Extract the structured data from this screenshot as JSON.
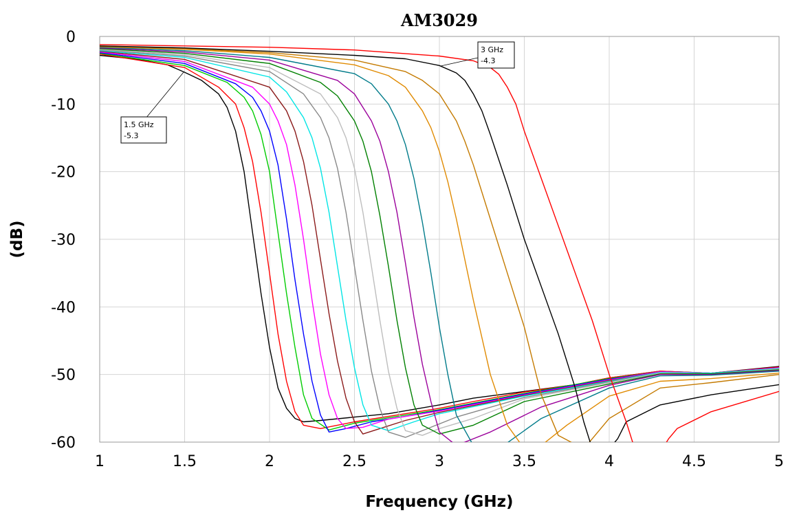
{
  "chart_data": {
    "type": "line",
    "title": "AM3029",
    "xlabel": "Frequency (GHz)",
    "ylabel": "(dB)",
    "xlim": [
      1,
      5
    ],
    "ylim": [
      -60,
      0
    ],
    "xticks": [
      "1",
      "1.5",
      "2",
      "2.5",
      "3",
      "3.5",
      "4",
      "4.5",
      "5"
    ],
    "yticks": [
      "0",
      "-10",
      "-20",
      "-30",
      "-40",
      "-50",
      "-60"
    ],
    "grid": true,
    "series": [
      {
        "color": "#000000",
        "x": [
          1,
          1.2,
          1.4,
          1.5,
          1.6,
          1.7,
          1.75,
          1.8,
          1.85,
          1.9,
          1.95,
          2.0,
          2.05,
          2.1,
          2.15,
          2.2,
          2.3,
          2.5,
          2.7,
          3.0,
          3.2,
          3.5,
          3.8,
          4.0,
          4.3,
          4.6,
          5.0
        ],
        "y": [
          -2.8,
          -3.3,
          -4.2,
          -5.3,
          -6.5,
          -8.5,
          -10.5,
          -14,
          -20,
          -29,
          -38,
          -46,
          -52,
          -55,
          -56.5,
          -57,
          -56.8,
          -56.3,
          -55.8,
          -54.5,
          -53.5,
          -52.5,
          -51.5,
          -50.5,
          -49.5,
          -49.8,
          -48.8
        ]
      },
      {
        "color": "#ff0000",
        "x": [
          1,
          1.5,
          1.7,
          1.8,
          1.85,
          1.9,
          1.95,
          2.0,
          2.05,
          2.1,
          2.15,
          2.2,
          2.3,
          2.5,
          2.7,
          3.0,
          3.2,
          3.5,
          3.8,
          4.0,
          4.3,
          4.6,
          5.0
        ],
        "y": [
          -2.6,
          -4.6,
          -7.5,
          -10,
          -13.5,
          -18.5,
          -26,
          -35,
          -44,
          -51,
          -55.5,
          -57.5,
          -58,
          -57,
          -56.2,
          -55,
          -54,
          -52.6,
          -51.5,
          -50.5,
          -49.5,
          -49.8,
          -48.9
        ]
      },
      {
        "color": "#00cc00",
        "x": [
          1,
          1.5,
          1.75,
          1.85,
          1.9,
          1.95,
          2.0,
          2.05,
          2.1,
          2.15,
          2.2,
          2.25,
          2.35,
          2.5,
          2.7,
          3.0,
          3.5,
          4.0,
          4.3,
          4.6,
          5.0
        ],
        "y": [
          -2.5,
          -4.3,
          -6.8,
          -9,
          -11,
          -14.5,
          -20,
          -29,
          -38,
          -46,
          -53,
          -56.5,
          -58.2,
          -57.2,
          -56.4,
          -55.2,
          -52.8,
          -50.6,
          -49.6,
          -49.8,
          -49
        ]
      },
      {
        "color": "#0000ff",
        "x": [
          1,
          1.5,
          1.8,
          1.9,
          1.95,
          2.0,
          2.05,
          2.1,
          2.15,
          2.2,
          2.25,
          2.3,
          2.35,
          2.45,
          2.6,
          2.8,
          3.0,
          3.5,
          4.0,
          4.3,
          4.6,
          5.0
        ],
        "y": [
          -2.4,
          -4.0,
          -7,
          -9,
          -11,
          -14,
          -19,
          -27,
          -36,
          -44,
          -51,
          -56,
          -58.5,
          -58,
          -57,
          -56.2,
          -55.3,
          -52.9,
          -50.7,
          -49.6,
          -49.8,
          -49
        ]
      },
      {
        "color": "#ff00ff",
        "x": [
          1,
          1.5,
          1.9,
          2.0,
          2.05,
          2.1,
          2.15,
          2.2,
          2.25,
          2.3,
          2.35,
          2.4,
          2.45,
          2.55,
          2.7,
          3.0,
          3.5,
          4.0,
          4.3,
          4.6,
          5.0
        ],
        "y": [
          -2.3,
          -3.7,
          -7.5,
          -10,
          -12.5,
          -16,
          -22,
          -30,
          -39,
          -47,
          -53,
          -56.5,
          -58,
          -57.8,
          -56.6,
          -55.4,
          -53,
          -50.8,
          -49.6,
          -49.8,
          -49
        ]
      },
      {
        "color": "#8b1a1a",
        "x": [
          1,
          1.5,
          2.0,
          2.1,
          2.15,
          2.2,
          2.25,
          2.3,
          2.35,
          2.4,
          2.45,
          2.5,
          2.55,
          2.65,
          2.8,
          3.0,
          3.5,
          4.0,
          4.3,
          4.6,
          5.0
        ],
        "y": [
          -2.2,
          -3.4,
          -7.5,
          -11,
          -14,
          -18.5,
          -25,
          -33,
          -41,
          -48,
          -53.5,
          -57,
          -58.8,
          -58,
          -56.8,
          -55.6,
          -53.1,
          -50.9,
          -49.7,
          -49.8,
          -49.1
        ]
      },
      {
        "color": "#00e5e5",
        "x": [
          1,
          1.5,
          2.0,
          2.1,
          2.2,
          2.25,
          2.3,
          2.35,
          2.4,
          2.45,
          2.5,
          2.55,
          2.6,
          2.7,
          2.85,
          3.0,
          3.5,
          4.0,
          4.3,
          4.6,
          5.0
        ],
        "y": [
          -2.1,
          -3.1,
          -6,
          -8.2,
          -12,
          -15,
          -19.5,
          -26,
          -34,
          -42,
          -49,
          -54.5,
          -57.5,
          -58.3,
          -57,
          -55.8,
          -53.2,
          -51,
          -49.7,
          -49.8,
          -49.1
        ]
      },
      {
        "color": "#888888",
        "x": [
          1,
          1.5,
          2.0,
          2.2,
          2.3,
          2.35,
          2.4,
          2.45,
          2.5,
          2.55,
          2.6,
          2.65,
          2.7,
          2.8,
          2.95,
          3.1,
          3.5,
          4.0,
          4.3,
          4.6,
          5.0
        ],
        "y": [
          -2.0,
          -2.9,
          -5.2,
          -8.5,
          -12,
          -15,
          -19.5,
          -26,
          -34,
          -42,
          -49.5,
          -55,
          -58.5,
          -59.3,
          -57.8,
          -56.3,
          -53.4,
          -51.1,
          -49.8,
          -49.9,
          -49.2
        ]
      },
      {
        "color": "#bdbdbd",
        "x": [
          1,
          1.5,
          2.0,
          2.3,
          2.4,
          2.45,
          2.5,
          2.55,
          2.6,
          2.65,
          2.7,
          2.75,
          2.8,
          2.9,
          3.0,
          3.2,
          3.5,
          4.0,
          4.3,
          4.6,
          5.0
        ],
        "y": [
          -1.9,
          -2.7,
          -4.6,
          -8.5,
          -12,
          -15,
          -19.5,
          -26,
          -34,
          -42,
          -49.5,
          -55,
          -58.3,
          -59,
          -58,
          -56.5,
          -53.6,
          -51.2,
          -49.8,
          -49.9,
          -49.2
        ]
      },
      {
        "color": "#008000",
        "x": [
          1,
          1.5,
          2.0,
          2.3,
          2.4,
          2.5,
          2.55,
          2.6,
          2.65,
          2.7,
          2.75,
          2.8,
          2.85,
          2.9,
          3.0,
          3.2,
          3.5,
          4.0,
          4.3,
          4.6,
          5.0
        ],
        "y": [
          -1.8,
          -2.5,
          -4.0,
          -6.8,
          -8.8,
          -12.5,
          -15.5,
          -20,
          -26.5,
          -34,
          -42,
          -49,
          -54.5,
          -57.5,
          -58.8,
          -57.5,
          -54,
          -51.4,
          -49.9,
          -49.9,
          -49.3
        ]
      },
      {
        "color": "#9b009b",
        "x": [
          1,
          1.5,
          2.0,
          2.4,
          2.5,
          2.6,
          2.65,
          2.7,
          2.75,
          2.8,
          2.85,
          2.9,
          2.95,
          3.0,
          3.1,
          3.3,
          3.6,
          4.0,
          4.3,
          4.6,
          5.0
        ],
        "y": [
          -1.7,
          -2.3,
          -3.5,
          -6.5,
          -8.5,
          -12.5,
          -15.5,
          -20,
          -26,
          -33.5,
          -41.5,
          -48.5,
          -54,
          -58.5,
          -60.5,
          -58.5,
          -54.8,
          -51.6,
          -50,
          -50,
          -49.4
        ]
      },
      {
        "color": "#007b8a",
        "x": [
          1,
          1.5,
          2.0,
          2.5,
          2.6,
          2.7,
          2.75,
          2.8,
          2.85,
          2.9,
          2.95,
          3.0,
          3.05,
          3.1,
          3.2,
          3.35,
          3.6,
          4.0,
          4.3,
          4.6,
          5.0
        ],
        "y": [
          -1.6,
          -2.1,
          -3.1,
          -5.5,
          -7,
          -10,
          -12.5,
          -16,
          -21,
          -27.5,
          -35,
          -43,
          -50,
          -56,
          -60.5,
          -61,
          -56.5,
          -52,
          -50.2,
          -50.1,
          -49.5
        ]
      },
      {
        "color": "#e08a00",
        "x": [
          1,
          1.5,
          2.0,
          2.5,
          2.7,
          2.8,
          2.9,
          2.95,
          3.0,
          3.05,
          3.1,
          3.15,
          3.2,
          3.3,
          3.4,
          3.5,
          3.6,
          3.75,
          4.0,
          4.3,
          4.6,
          5.0
        ],
        "y": [
          -1.5,
          -1.9,
          -2.6,
          -4.2,
          -5.8,
          -7.5,
          -11,
          -13.5,
          -17,
          -21.5,
          -27,
          -33,
          -39,
          -50,
          -57.5,
          -61,
          -60.5,
          -57.5,
          -53.2,
          -51,
          -50.6,
          -49.8
        ]
      },
      {
        "color": "#c47a00",
        "x": [
          1,
          1.5,
          2.0,
          2.5,
          2.8,
          2.9,
          3.0,
          3.1,
          3.15,
          3.2,
          3.3,
          3.4,
          3.5,
          3.55,
          3.6,
          3.7,
          3.85,
          4.0,
          4.3,
          4.6,
          5.0
        ],
        "y": [
          -1.4,
          -1.8,
          -2.4,
          -3.5,
          -5.2,
          -6.5,
          -8.5,
          -12.5,
          -15.5,
          -19,
          -27,
          -35,
          -43,
          -48,
          -53,
          -59,
          -61,
          -56.5,
          -52,
          -51.2,
          -50
        ]
      },
      {
        "color": "#000000",
        "x": [
          1,
          1.5,
          2.0,
          2.5,
          2.8,
          3.0,
          3.1,
          3.15,
          3.2,
          3.25,
          3.3,
          3.4,
          3.5,
          3.6,
          3.7,
          3.8,
          3.85,
          3.9,
          3.95,
          4.0,
          4.05,
          4.1,
          4.3,
          4.6,
          5.0
        ],
        "y": [
          -1.4,
          -1.7,
          -2.2,
          -2.8,
          -3.3,
          -4.3,
          -5.4,
          -6.5,
          -8.5,
          -11,
          -14.5,
          -22,
          -30,
          -37,
          -44,
          -52,
          -57,
          -61,
          -62,
          -61,
          -59.5,
          -57,
          -54.5,
          -53,
          -51.5
        ]
      },
      {
        "color": "#ff0000",
        "x": [
          1,
          1.5,
          2.0,
          2.5,
          3.0,
          3.2,
          3.3,
          3.35,
          3.4,
          3.45,
          3.5,
          3.6,
          3.7,
          3.8,
          3.9,
          4.0,
          4.1,
          4.15,
          4.2,
          4.3,
          4.35,
          4.4,
          4.6,
          5.0
        ],
        "y": [
          -1.2,
          -1.4,
          -1.6,
          -2.0,
          -2.9,
          -3.6,
          -4.6,
          -5.6,
          -7.5,
          -10,
          -14,
          -21,
          -28,
          -35,
          -42,
          -50,
          -57,
          -61,
          -62,
          -61.5,
          -59.5,
          -58,
          -55.5,
          -52.5
        ]
      }
    ],
    "annotations": [
      {
        "lines": [
          "3 GHz",
          "-4.3"
        ]
      },
      {
        "lines": [
          "1.5 GHz",
          "-5.3"
        ]
      }
    ]
  }
}
